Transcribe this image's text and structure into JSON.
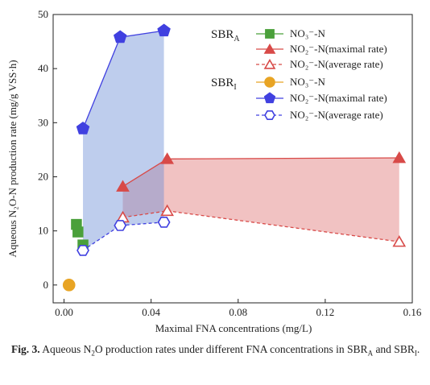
{
  "chart_data": {
    "type": "scatter",
    "x_label": "Maximal FNA concentrations (mg/L)",
    "y_label": "Aqueous N₂O-N production rate (mg/g VSS·h)",
    "xlim": [
      -0.005,
      0.16
    ],
    "ylim": [
      -3.3,
      50
    ],
    "xticks": [
      {
        "value": 0,
        "label": "0.00"
      },
      0.04,
      0.08,
      0.12,
      0.16
    ],
    "yticks": [
      0,
      10,
      20,
      30,
      40,
      50
    ],
    "groups": [
      {
        "label": "SBR",
        "sub": "A",
        "band_color": "rgba(222,110,110,0.42)",
        "series": [
          {
            "name": "NO₃⁻-N",
            "color": "#4aa03a",
            "marker": "square",
            "filled": true,
            "dashed": false,
            "connect": false,
            "x": [
              0.0057,
              0.0064,
              0.0087
            ],
            "values": [
              11.2,
              9.8,
              7.4
            ]
          },
          {
            "name": "NO₂⁻-N(maximal rate)",
            "color": "#d84a48",
            "marker": "triangle",
            "filled": true,
            "dashed": false,
            "connect": true,
            "x": [
              0.027,
              0.0474,
              0.154
            ],
            "values": [
              18.2,
              23.3,
              23.5
            ]
          },
          {
            "name": "NO₂⁻-N(average rate)",
            "color": "#d84a48",
            "marker": "triangle",
            "filled": false,
            "dashed": true,
            "connect": true,
            "x": [
              0.027,
              0.0474,
              0.154
            ],
            "values": [
              12.5,
              13.7,
              8.0
            ]
          }
        ]
      },
      {
        "label": "SBR",
        "sub": "I",
        "band_color": "rgba(110,145,215,0.45)",
        "series": [
          {
            "name": "NO₃⁻-N",
            "color": "#e8a424",
            "marker": "circle",
            "filled": true,
            "dashed": false,
            "connect": false,
            "x": [
              0.0023
            ],
            "values": [
              0
            ]
          },
          {
            "name": "NO₂⁻-N(maximal rate)",
            "color": "#4040e0",
            "marker": "pentagon",
            "filled": true,
            "dashed": false,
            "connect": true,
            "x": [
              0.0087,
              0.0258,
              0.0459
            ],
            "values": [
              28.9,
              45.8,
              47.0
            ]
          },
          {
            "name": "NO₂⁻-N(average rate)",
            "color": "#4040e0",
            "marker": "hexagon",
            "filled": false,
            "dashed": true,
            "connect": true,
            "x": [
              0.0087,
              0.0258,
              0.0459
            ],
            "values": [
              6.4,
              11.0,
              11.6
            ]
          }
        ]
      }
    ]
  },
  "caption": {
    "label": "Fig. 3.",
    "text": [
      " Aqueous N",
      "2",
      "O production rates under different FNA concentrations in SBR",
      "A",
      " and SBR",
      "I",
      "."
    ]
  }
}
